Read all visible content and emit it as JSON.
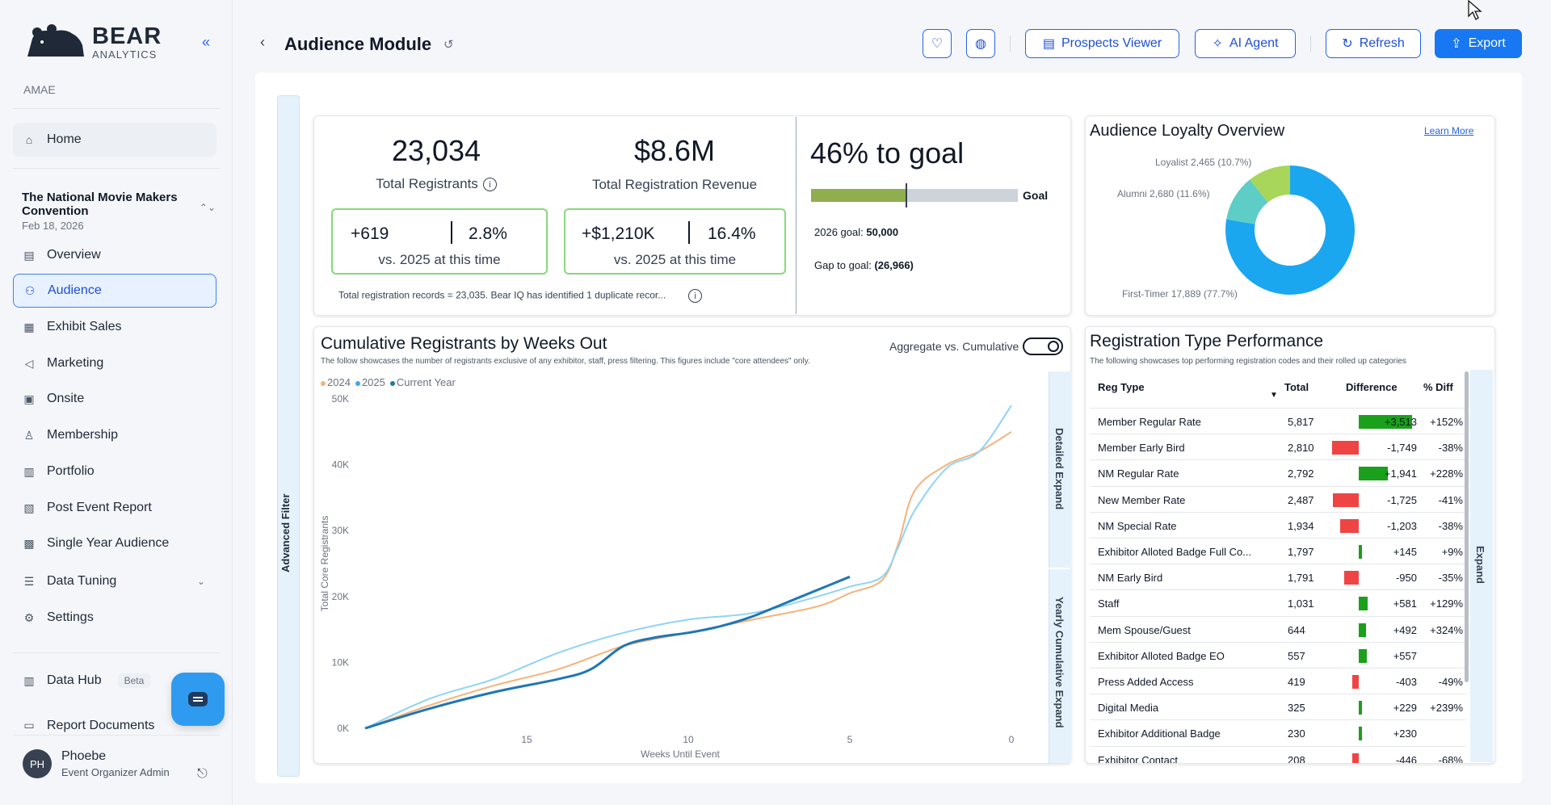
{
  "brand": {
    "name": "BEAR",
    "sub": "ANALYTICS"
  },
  "org": "AMAE",
  "nav": {
    "home": "Home",
    "event_name": "The National Movie Makers Convention",
    "event_date": "Feb 18, 2026",
    "items": [
      "Overview",
      "Audience",
      "Exhibit Sales",
      "Marketing",
      "Onsite",
      "Membership",
      "Portfolio",
      "Post Event Report",
      "Single Year Audience",
      "Data Tuning",
      "Settings"
    ],
    "data_hub": "Data Hub",
    "beta": "Beta",
    "report_docs": "Report Documents"
  },
  "user": {
    "initials": "PH",
    "name": "Phoebe",
    "role": "Event Organizer Admin"
  },
  "header": {
    "title": "Audience Module",
    "prospects": "Prospects Viewer",
    "ai_agent": "AI Agent",
    "refresh": "Refresh",
    "export": "Export"
  },
  "advanced_filter": "Advanced Filter",
  "kpis": {
    "registrants_value": "23,034",
    "registrants_label": "Total Registrants",
    "reg_delta": "+619",
    "reg_pct": "2.8%",
    "reg_vs": "vs. 2025 at this time",
    "revenue_value": "$8.6M",
    "revenue_label": "Total Registration Revenue",
    "rev_delta": "+$1,210K",
    "rev_pct": "16.4%",
    "rev_vs": "vs. 2025 at this time",
    "note": "Total registration records = 23,035. Bear IQ has identified 1 duplicate recor...",
    "info": "i"
  },
  "goal": {
    "title": "46% to goal",
    "progress": 0.46,
    "label": "Goal",
    "goal_line_label": "2026 goal:",
    "goal_value": "50,000",
    "gap_label": "Gap to goal:",
    "gap_value": "(26,966)"
  },
  "loyalty": {
    "title": "Audience Loyalty Overview",
    "learn_more": "Learn More",
    "slices": [
      {
        "label": "First-Timer 17,889 (77.7%)",
        "value": 77.7,
        "color": "#1aa7f0"
      },
      {
        "label": "Alumni 2,680 (11.6%)",
        "value": 11.6,
        "color": "#5ecdc5"
      },
      {
        "label": "Loyalist 2,465 (10.7%)",
        "value": 10.7,
        "color": "#a8d65a"
      }
    ]
  },
  "cumulative": {
    "title": "Cumulative Registrants by Weeks Out",
    "subtitle": "The follow showcases the number of registrants exclusive of any exhibitor, staff, press filtering. This figures include \"core attendees\" only.",
    "toggle_label": "Aggregate vs. Cumulative",
    "detailed_expand": "Detailed Expand",
    "yearly_expand": "Yearly Cumulative Expand"
  },
  "chart_data": {
    "type": "line",
    "xlabel": "Weeks Until Event",
    "ylabel": "Total Core Registrants",
    "xlim": [
      20,
      0
    ],
    "ylim": [
      0,
      50000
    ],
    "x_ticks": [
      "15",
      "10",
      "5",
      "0"
    ],
    "y_ticks": [
      "0K",
      "10K",
      "20K",
      "30K",
      "40K",
      "50K"
    ],
    "series": [
      {
        "name": "2024",
        "color": "#f4b27a",
        "x": [
          20,
          18,
          16,
          14,
          12,
          10,
          8,
          6,
          5,
          4,
          3.5,
          3,
          2,
          1,
          0
        ],
        "y": [
          0,
          3500,
          6500,
          9000,
          12500,
          14500,
          16500,
          18500,
          20500,
          22500,
          28000,
          36000,
          40000,
          42000,
          45000
        ]
      },
      {
        "name": "2025",
        "color": "#8fd3f5",
        "x": [
          20,
          18,
          16,
          14,
          12,
          10,
          8,
          6,
          5,
          4,
          3.5,
          3,
          2,
          1,
          0
        ],
        "y": [
          0,
          4500,
          7500,
          11500,
          14500,
          16500,
          17500,
          20000,
          21500,
          23000,
          27500,
          33000,
          39500,
          42000,
          49000
        ]
      },
      {
        "name": "Current Year",
        "color": "#1f77b4",
        "x": [
          20,
          18,
          16,
          14,
          13,
          12,
          11,
          10,
          9,
          8,
          7,
          6,
          5
        ],
        "y": [
          0,
          3000,
          5500,
          7500,
          9000,
          12500,
          13800,
          14500,
          15500,
          17000,
          19000,
          21000,
          23000
        ]
      }
    ]
  },
  "reg_table": {
    "title": "Registration Type Performance",
    "subtitle": "The following showcases top performing registration codes and their rolled up categories",
    "columns": [
      "Reg Type",
      "Total",
      "Difference",
      "% Diff"
    ],
    "expand": "Expand",
    "rows": [
      {
        "type": "Member Regular Rate",
        "total": "5,817",
        "diff": "+3,513",
        "pct": "+152%",
        "d": 3513
      },
      {
        "type": "Member Early Bird",
        "total": "2,810",
        "diff": "-1,749",
        "pct": "-38%",
        "d": -1749
      },
      {
        "type": "NM Regular Rate",
        "total": "2,792",
        "diff": "+1,941",
        "pct": "+228%",
        "d": 1941
      },
      {
        "type": "New Member Rate",
        "total": "2,487",
        "diff": "-1,725",
        "pct": "-41%",
        "d": -1725
      },
      {
        "type": "NM Special Rate",
        "total": "1,934",
        "diff": "-1,203",
        "pct": "-38%",
        "d": -1203
      },
      {
        "type": "Exhibitor Alloted Badge Full Co...",
        "total": "1,797",
        "diff": "+145",
        "pct": "+9%",
        "d": 145
      },
      {
        "type": "NM Early Bird",
        "total": "1,791",
        "diff": "-950",
        "pct": "-35%",
        "d": -950
      },
      {
        "type": "Staff",
        "total": "1,031",
        "diff": "+581",
        "pct": "+129%",
        "d": 581
      },
      {
        "type": "Mem Spouse/Guest",
        "total": "644",
        "diff": "+492",
        "pct": "+324%",
        "d": 492
      },
      {
        "type": "Exhibitor Alloted Badge EO",
        "total": "557",
        "diff": "+557",
        "pct": "",
        "d": 557
      },
      {
        "type": "Press Added Access",
        "total": "419",
        "diff": "-403",
        "pct": "-49%",
        "d": -403
      },
      {
        "type": "Digital Media",
        "total": "325",
        "diff": "+229",
        "pct": "+239%",
        "d": 229
      },
      {
        "type": "Exhibitor Additional Badge",
        "total": "230",
        "diff": "+230",
        "pct": "",
        "d": 230
      },
      {
        "type": "Exhibitor Contact",
        "total": "208",
        "diff": "-446",
        "pct": "-68%",
        "d": -446
      }
    ]
  }
}
